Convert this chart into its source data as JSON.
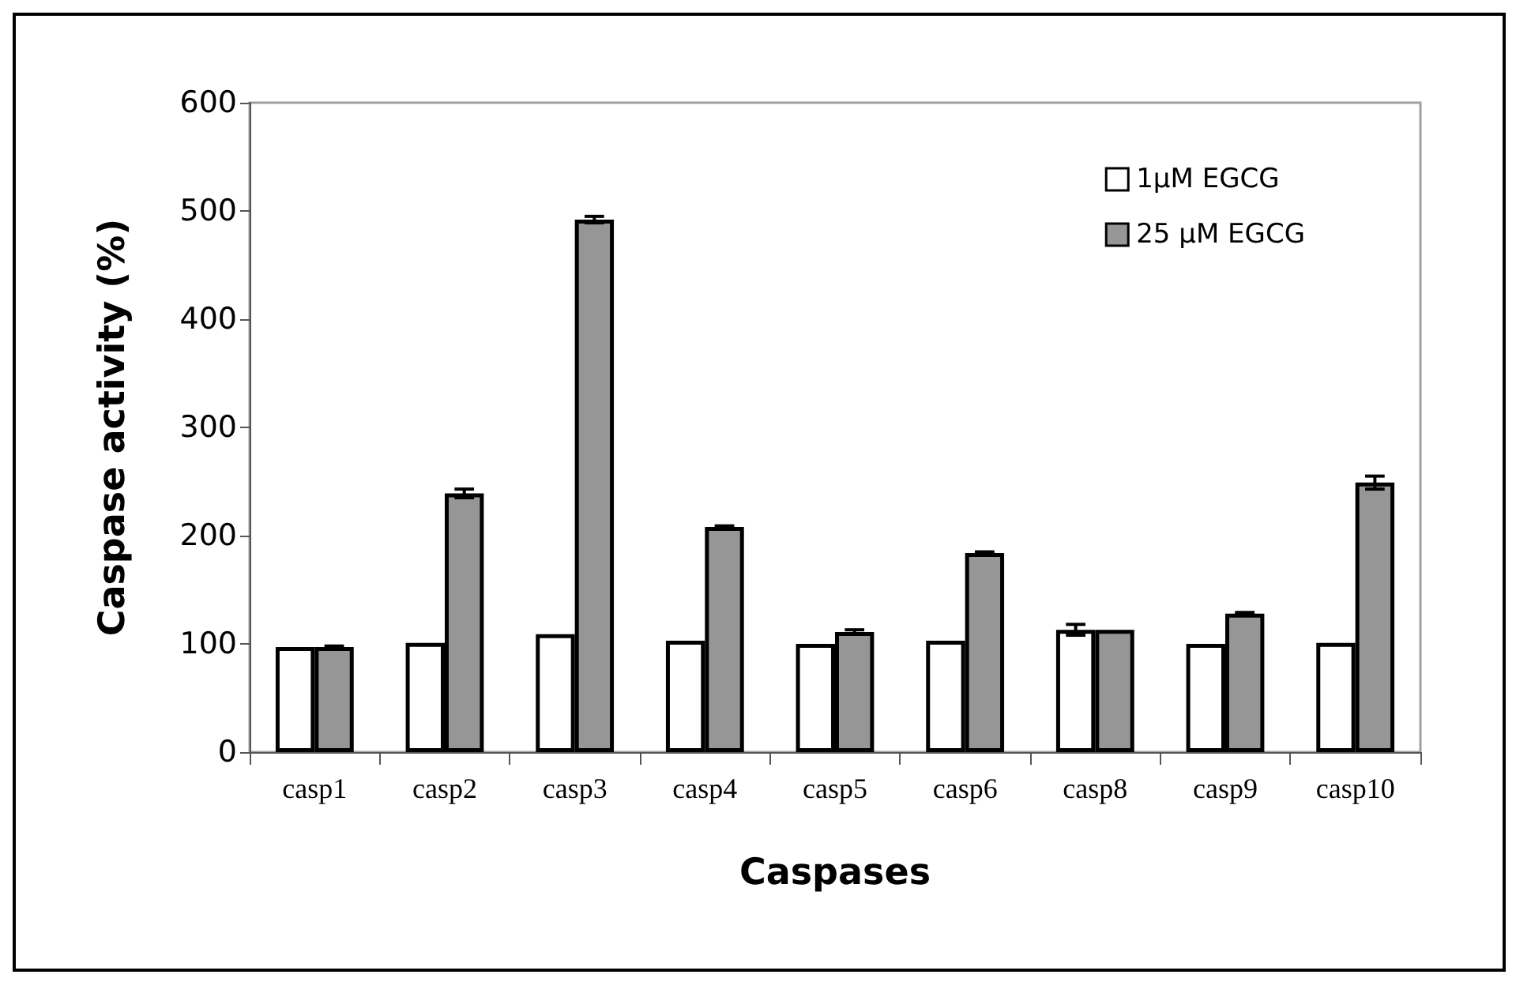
{
  "chart_data": {
    "type": "bar",
    "xlabel": "Caspases",
    "ylabel": "Caspase activity (%)",
    "categories": [
      "casp1",
      "casp2",
      "casp3",
      "casp4",
      "casp5",
      "casp6",
      "casp8",
      "casp9",
      "casp10"
    ],
    "series": [
      {
        "name": "1μM EGCG",
        "color": "#ffffff",
        "values": [
          97,
          101,
          109,
          103,
          100,
          103,
          113,
          100,
          101
        ],
        "errors": [
          null,
          null,
          null,
          null,
          null,
          null,
          5,
          null,
          null
        ]
      },
      {
        "name": "25 μM EGCG",
        "color": "#969696",
        "values": [
          97,
          239,
          492,
          208,
          111,
          184,
          113,
          128,
          249
        ],
        "errors": [
          1,
          4,
          3,
          1,
          2,
          1,
          null,
          1,
          6
        ]
      }
    ],
    "ylim": [
      0,
      600
    ],
    "yticks": [
      0,
      100,
      200,
      300,
      400,
      500,
      600
    ],
    "grid": false,
    "legend": "top right"
  }
}
